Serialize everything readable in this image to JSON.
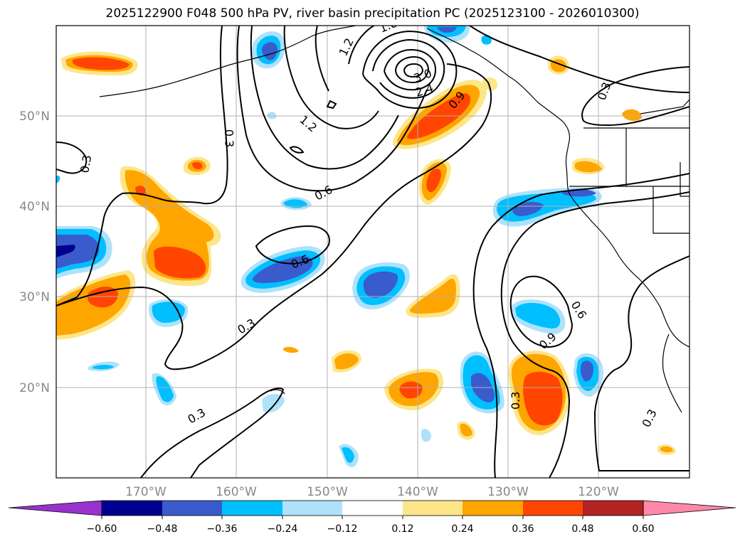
{
  "title": "2025122900 F048 500 hPa PV, river basin precipitation PC (2025123100 - 2026010300)",
  "colors": {
    "neg060": "#9932cc",
    "neg048": "#000090",
    "neg036": "#3a5bcc",
    "neg024": "#00bfff",
    "neg012": "#aee2fa",
    "zero": "#ffffff",
    "pos012": "#fde68a",
    "pos024": "#ffa500",
    "pos036": "#ff4500",
    "pos048": "#b22222",
    "pos060": "#ff88aa"
  },
  "map": {
    "lat_labels": [
      "50°N",
      "40°N",
      "30°N",
      "20°N"
    ],
    "lon_labels": [
      "170°W",
      "160°W",
      "150°W",
      "140°W",
      "130°W",
      "120°W"
    ],
    "contour_labels": [
      "0.3",
      "0.3",
      "0.3",
      "0.3",
      "0.3",
      "0.3",
      "0.3",
      "0.6",
      "0.6",
      "0.6",
      "0.9",
      "0.9",
      "1.2",
      "1.2",
      "1.8",
      "2.4",
      "3.0"
    ]
  },
  "colorbar": {
    "ticks": [
      "−0.60",
      "−0.48",
      "−0.36",
      "−0.24",
      "−0.12",
      "0.12",
      "0.24",
      "0.36",
      "0.48",
      "0.60"
    ]
  }
}
